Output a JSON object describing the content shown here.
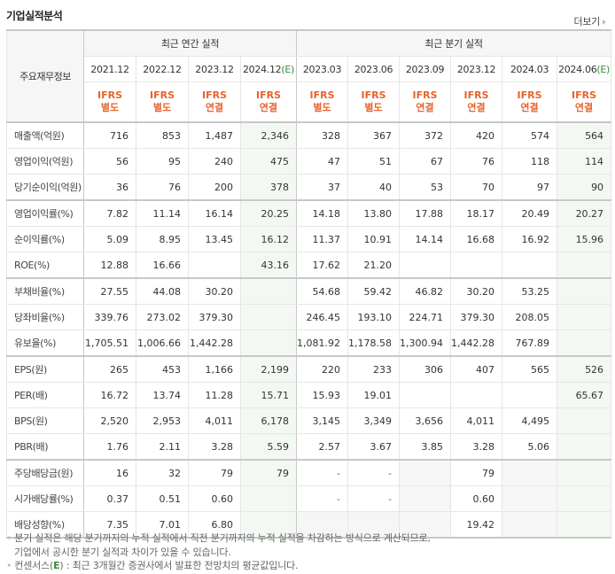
{
  "title": "기업실적분석",
  "more_label": "더보기",
  "table": {
    "corner_label": "주요재무정보",
    "groups": {
      "annual": "최근 연간 실적",
      "quarterly": "최근 분기 실적"
    },
    "periods": [
      {
        "label": "2021.12",
        "est": "",
        "acct1": "IFRS",
        "acct2": "별도"
      },
      {
        "label": "2022.12",
        "est": "",
        "acct1": "IFRS",
        "acct2": "별도"
      },
      {
        "label": "2023.12",
        "est": "",
        "acct1": "IFRS",
        "acct2": "연결"
      },
      {
        "label": "2024.12",
        "est": "(E)",
        "acct1": "IFRS",
        "acct2": "연결"
      },
      {
        "label": "2023.03",
        "est": "",
        "acct1": "IFRS",
        "acct2": "별도"
      },
      {
        "label": "2023.06",
        "est": "",
        "acct1": "IFRS",
        "acct2": "별도"
      },
      {
        "label": "2023.09",
        "est": "",
        "acct1": "IFRS",
        "acct2": "연결"
      },
      {
        "label": "2023.12",
        "est": "",
        "acct1": "IFRS",
        "acct2": "연결"
      },
      {
        "label": "2024.03",
        "est": "",
        "acct1": "IFRS",
        "acct2": "연결"
      },
      {
        "label": "2024.06",
        "est": "(E)",
        "acct1": "IFRS",
        "acct2": "연결"
      }
    ],
    "rows": [
      {
        "label": "매출액(억원)",
        "values": [
          "716",
          "853",
          "1,487",
          "2,346",
          "328",
          "367",
          "372",
          "420",
          "574",
          "564"
        ]
      },
      {
        "label": "영업이익(억원)",
        "values": [
          "56",
          "95",
          "240",
          "475",
          "47",
          "51",
          "67",
          "76",
          "118",
          "114"
        ]
      },
      {
        "label": "당기순이익(억원)",
        "values": [
          "36",
          "76",
          "200",
          "378",
          "37",
          "40",
          "53",
          "70",
          "97",
          "90"
        ]
      },
      {
        "label": "영업이익률(%)",
        "values": [
          "7.82",
          "11.14",
          "16.14",
          "20.25",
          "14.18",
          "13.80",
          "17.88",
          "18.17",
          "20.49",
          "20.27"
        ]
      },
      {
        "label": "순이익률(%)",
        "values": [
          "5.09",
          "8.95",
          "13.45",
          "16.12",
          "11.37",
          "10.91",
          "14.14",
          "16.68",
          "16.92",
          "15.96"
        ]
      },
      {
        "label": "ROE(%)",
        "values": [
          "12.88",
          "16.66",
          "",
          "43.16",
          "17.62",
          "21.20",
          "",
          "",
          "",
          ""
        ]
      },
      {
        "label": "부채비율(%)",
        "values": [
          "27.55",
          "44.08",
          "30.20",
          "",
          "54.68",
          "59.42",
          "46.82",
          "30.20",
          "53.25",
          ""
        ]
      },
      {
        "label": "당좌비율(%)",
        "values": [
          "339.76",
          "273.02",
          "379.30",
          "",
          "246.45",
          "193.10",
          "224.71",
          "379.30",
          "208.05",
          ""
        ]
      },
      {
        "label": "유보율(%)",
        "values": [
          "1,705.51",
          "1,006.66",
          "1,442.28",
          "",
          "1,081.92",
          "1,178.58",
          "1,300.94",
          "1,442.28",
          "767.89",
          ""
        ]
      },
      {
        "label": "EPS(원)",
        "values": [
          "265",
          "453",
          "1,166",
          "2,199",
          "220",
          "233",
          "306",
          "407",
          "565",
          "526"
        ]
      },
      {
        "label": "PER(배)",
        "values": [
          "16.72",
          "13.74",
          "11.28",
          "15.71",
          "15.93",
          "19.01",
          "",
          "",
          "",
          "65.67"
        ]
      },
      {
        "label": "BPS(원)",
        "values": [
          "2,520",
          "2,953",
          "4,011",
          "6,178",
          "3,145",
          "3,349",
          "3,656",
          "4,011",
          "4,495",
          ""
        ]
      },
      {
        "label": "PBR(배)",
        "values": [
          "1.76",
          "2.11",
          "3.28",
          "5.59",
          "2.57",
          "3.67",
          "3.85",
          "3.28",
          "5.06",
          ""
        ]
      },
      {
        "label": "주당배당금(원)",
        "values": [
          "16",
          "32",
          "79",
          "79",
          "-",
          "-",
          "",
          "79",
          "",
          ""
        ]
      },
      {
        "label": "시가배당률(%)",
        "values": [
          "0.37",
          "0.51",
          "0.60",
          "",
          "-",
          "-",
          "",
          "0.60",
          "",
          ""
        ]
      },
      {
        "label": "배당성향(%)",
        "values": [
          "7.35",
          "7.01",
          "6.80",
          "",
          "",
          "",
          "",
          "19.42",
          "",
          ""
        ]
      }
    ]
  },
  "notes": {
    "line1": "분기 실적은 해당 분기까지의 누적 실적에서 직전 분기까지의 누적 실적을 차감하는 방식으로 계산되므로,",
    "line2": "기업에서 공시한 분기 실적과 차이가 있을 수 있습니다.",
    "line3_prefix": "컨센서스(",
    "line3_e": "E",
    "line3_suffix": ") : 최근 3개월간 증권사에서 발표한 전망치의 평균값입니다."
  },
  "colors": {
    "accounting_label": "#e8632b",
    "estimate": "#3c8a3c",
    "estimate_bg": "#f3f8f3",
    "empty_bg": "#f6f6f6"
  }
}
